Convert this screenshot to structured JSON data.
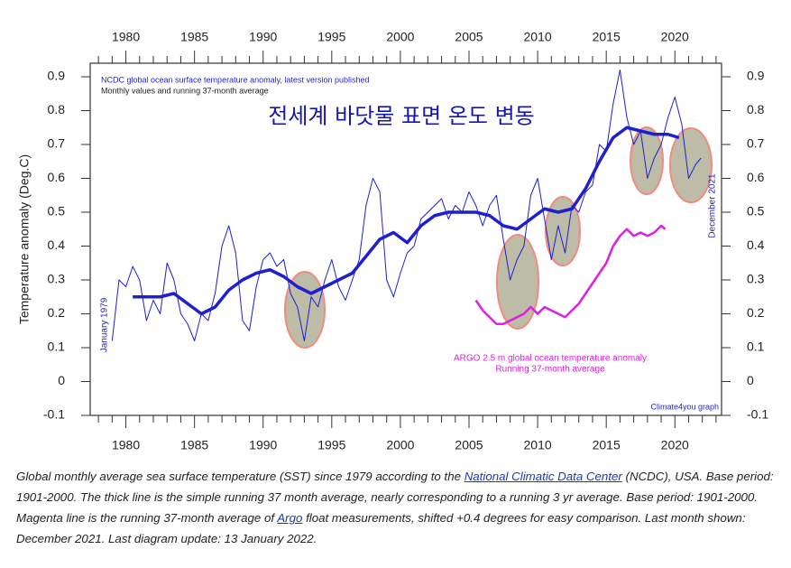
{
  "chart_data": {
    "type": "line",
    "header": [
      "NCDC global ocean surface temperature anomaly, latest version published",
      "Monthly values and running 37-month average"
    ],
    "title": "전세계 바닷물 표면 온도 변동",
    "ylabel": "Temperature anomaly (Deg.C)",
    "annotations": {
      "start": "January 1979",
      "end": "December 2021",
      "argo": [
        "ARGO 2.5 m global ocean temperature anomaly",
        "Running 37-month average"
      ],
      "credit": "Climate4you graph"
    },
    "xlim": [
      1977.4,
      2023.4
    ],
    "ylim": [
      -0.1,
      0.94
    ],
    "xticks": [
      1980,
      1985,
      1990,
      1995,
      2000,
      2005,
      2010,
      2015,
      2020
    ],
    "xminorticks": [
      1978,
      1979,
      1981,
      1982,
      1983,
      1984,
      1986,
      1987,
      1988,
      1989,
      1991,
      1992,
      1993,
      1994,
      1996,
      1997,
      1998,
      1999,
      2001,
      2002,
      2003,
      2004,
      2006,
      2007,
      2008,
      2009,
      2011,
      2012,
      2013,
      2014,
      2016,
      2017,
      2018,
      2019,
      2021,
      2022,
      2023
    ],
    "yticks": [
      -0.1,
      0,
      0.1,
      0.2,
      0.3,
      0.4,
      0.5,
      0.6,
      0.7,
      0.8,
      0.9
    ],
    "grid": false,
    "series": [
      {
        "color": "#1f1fd0",
        "width": 1,
        "x": [
          1979.0,
          1979.5,
          1980.0,
          1980.5,
          1981.0,
          1981.5,
          1982.0,
          1982.5,
          1983.0,
          1983.5,
          1984.0,
          1984.5,
          1985.0,
          1985.5,
          1986.0,
          1986.5,
          1987.0,
          1987.5,
          1988.0,
          1988.5,
          1989.0,
          1989.5,
          1990.0,
          1990.5,
          1991.0,
          1991.5,
          1992.0,
          1992.5,
          1993.0,
          1993.5,
          1994.0,
          1994.5,
          1995.0,
          1995.5,
          1996.0,
          1996.5,
          1997.0,
          1997.5,
          1998.0,
          1998.5,
          1999.0,
          1999.5,
          2000.0,
          2000.5,
          2001.0,
          2001.5,
          2002.0,
          2002.5,
          2003.0,
          2003.5,
          2004.0,
          2004.5,
          2005.0,
          2005.5,
          2006.0,
          2006.5,
          2007.0,
          2007.5,
          2008.0,
          2008.5,
          2009.0,
          2009.5,
          2010.0,
          2010.5,
          2011.0,
          2011.5,
          2012.0,
          2012.5,
          2013.0,
          2013.5,
          2014.0,
          2014.5,
          2015.0,
          2015.5,
          2016.0,
          2016.5,
          2017.0,
          2017.5,
          2018.0,
          2018.5,
          2019.0,
          2019.5,
          2020.0,
          2020.5,
          2021.0,
          2021.5,
          2021.9
        ],
        "values": [
          0.12,
          0.3,
          0.28,
          0.34,
          0.3,
          0.18,
          0.24,
          0.2,
          0.35,
          0.3,
          0.2,
          0.17,
          0.12,
          0.2,
          0.18,
          0.26,
          0.4,
          0.46,
          0.38,
          0.18,
          0.15,
          0.28,
          0.36,
          0.38,
          0.34,
          0.36,
          0.26,
          0.22,
          0.12,
          0.25,
          0.22,
          0.3,
          0.36,
          0.28,
          0.24,
          0.3,
          0.36,
          0.52,
          0.6,
          0.56,
          0.3,
          0.25,
          0.32,
          0.38,
          0.4,
          0.48,
          0.5,
          0.52,
          0.54,
          0.48,
          0.52,
          0.5,
          0.56,
          0.52,
          0.46,
          0.52,
          0.55,
          0.42,
          0.3,
          0.36,
          0.4,
          0.55,
          0.6,
          0.48,
          0.36,
          0.46,
          0.38,
          0.52,
          0.5,
          0.56,
          0.58,
          0.7,
          0.68,
          0.82,
          0.92,
          0.78,
          0.7,
          0.74,
          0.6,
          0.66,
          0.7,
          0.78,
          0.84,
          0.76,
          0.6,
          0.64,
          0.66
        ]
      },
      {
        "color": "#1f1fd0",
        "width": 3.5,
        "x": [
          1980.5,
          1981.5,
          1982.5,
          1983.5,
          1984.5,
          1985.5,
          1986.5,
          1987.5,
          1988.5,
          1989.5,
          1990.5,
          1991.5,
          1992.5,
          1993.5,
          1994.5,
          1995.5,
          1996.5,
          1997.5,
          1998.5,
          1999.5,
          2000.5,
          2001.5,
          2002.5,
          2003.5,
          2004.5,
          2005.5,
          2006.5,
          2007.5,
          2008.5,
          2009.5,
          2010.5,
          2011.5,
          2012.5,
          2013.5,
          2014.5,
          2015.5,
          2016.5,
          2017.5,
          2018.5,
          2019.5,
          2020.3
        ],
        "values": [
          0.25,
          0.25,
          0.25,
          0.26,
          0.23,
          0.2,
          0.22,
          0.27,
          0.3,
          0.32,
          0.33,
          0.31,
          0.28,
          0.26,
          0.28,
          0.3,
          0.32,
          0.37,
          0.42,
          0.44,
          0.41,
          0.46,
          0.49,
          0.5,
          0.5,
          0.5,
          0.49,
          0.46,
          0.45,
          0.48,
          0.51,
          0.5,
          0.51,
          0.57,
          0.65,
          0.72,
          0.75,
          0.74,
          0.73,
          0.73,
          0.72
        ]
      },
      {
        "color": "#e020e0",
        "width": 2.5,
        "x": [
          2005.5,
          2006.0,
          2006.5,
          2007.0,
          2007.5,
          2008.0,
          2008.5,
          2009.0,
          2009.5,
          2010.0,
          2010.5,
          2011.0,
          2011.5,
          2012.0,
          2012.5,
          2013.0,
          2013.5,
          2014.0,
          2014.5,
          2015.0,
          2015.5,
          2016.0,
          2016.5,
          2017.0,
          2017.5,
          2018.0,
          2018.5,
          2019.0,
          2019.3
        ],
        "values": [
          0.24,
          0.21,
          0.19,
          0.17,
          0.17,
          0.18,
          0.19,
          0.2,
          0.22,
          0.2,
          0.22,
          0.21,
          0.2,
          0.19,
          0.21,
          0.23,
          0.26,
          0.29,
          0.32,
          0.35,
          0.4,
          0.43,
          0.45,
          0.43,
          0.44,
          0.43,
          0.44,
          0.46,
          0.45
        ]
      }
    ]
  },
  "caption": {
    "text_1": "Global monthly average sea surface temperature (SST) since 1979 according to the ",
    "link_1": "National Climatic Data Center",
    "text_2": " (NCDC), USA. Base period: 1901-2000. The thick line is the simple running 37 month average, nearly corresponding to a running 3 yr average. Base period: 1901-2000. Magenta line is the running 37-month average of ",
    "link_2": "Argo",
    "text_3": " float measurements, shifted +0.4 degrees for easy comparison. Last month shown: December 2021. Last diagram update: 13 January 2022."
  }
}
